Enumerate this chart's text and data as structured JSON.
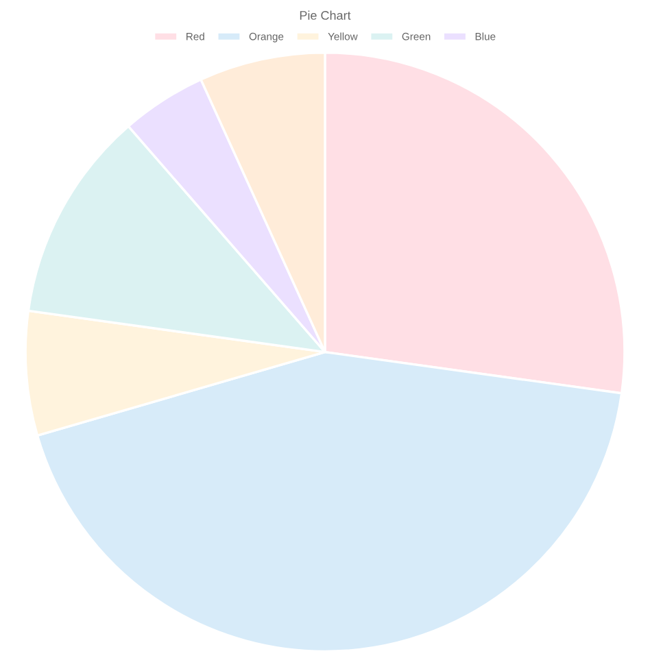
{
  "chart_data": {
    "type": "pie",
    "title": "Pie Chart",
    "categories": [
      "Red",
      "Orange",
      "Yellow",
      "Green",
      "Blue",
      null
    ],
    "values": [
      27.2,
      43.3,
      6.7,
      11.4,
      4.6,
      6.8
    ],
    "colors": [
      "#ffdfe5",
      "#d7ebf9",
      "#fff3dd",
      "#dbf2f2",
      "#ebe0ff",
      "#ffecd9"
    ],
    "legend": "top"
  }
}
